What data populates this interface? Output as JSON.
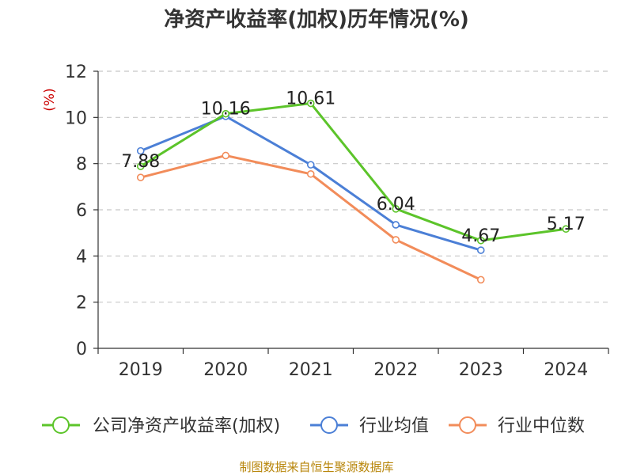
{
  "chart_data": {
    "type": "line",
    "title": "净资产收益率(加权)历年情况(%)",
    "ylabel": "(%)",
    "xlabel": "",
    "ylim": [
      0,
      12
    ],
    "yticks": [
      0,
      2,
      4,
      6,
      8,
      10,
      12
    ],
    "categories": [
      "2019",
      "2020",
      "2021",
      "2022",
      "2023",
      "2024"
    ],
    "grid": true,
    "legend_position": "bottom",
    "series": [
      {
        "name": "公司净资产收益率(加权)",
        "color": "#5cc42a",
        "values": [
          7.88,
          10.16,
          10.61,
          6.04,
          4.67,
          5.17
        ],
        "labels": [
          "7.88",
          "10.16",
          "10.61",
          "6.04",
          "4.67",
          "5.17"
        ]
      },
      {
        "name": "行业均值",
        "color": "#4b7fd6",
        "values": [
          8.55,
          10.05,
          7.95,
          5.35,
          4.25,
          null
        ]
      },
      {
        "name": "行业中位数",
        "color": "#f28c5a",
        "values": [
          7.4,
          8.35,
          7.55,
          4.7,
          2.97,
          null
        ]
      }
    ],
    "ylabel_color": "#cc0000"
  },
  "footer": {
    "source": "制图数据来自恒生聚源数据库"
  }
}
